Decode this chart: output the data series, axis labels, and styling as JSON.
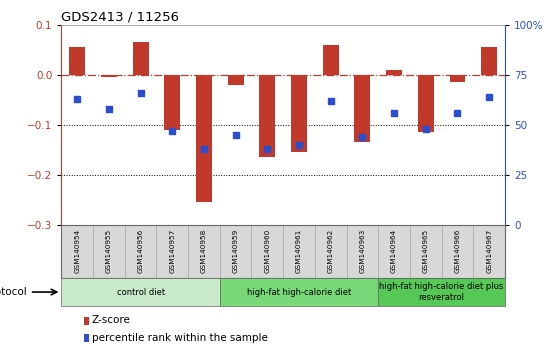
{
  "title": "GDS2413 / 11256",
  "samples": [
    "GSM140954",
    "GSM140955",
    "GSM140956",
    "GSM140957",
    "GSM140958",
    "GSM140959",
    "GSM140960",
    "GSM140961",
    "GSM140962",
    "GSM140963",
    "GSM140964",
    "GSM140965",
    "GSM140966",
    "GSM140967"
  ],
  "z_scores": [
    0.055,
    -0.005,
    0.065,
    -0.11,
    -0.255,
    -0.02,
    -0.165,
    -0.155,
    0.06,
    -0.135,
    0.01,
    -0.115,
    -0.015,
    0.055
  ],
  "percentile_ranks_pct": [
    63,
    58,
    66,
    47,
    38,
    45,
    38,
    40,
    62,
    44,
    56,
    48,
    56,
    64
  ],
  "ylim_left": [
    -0.3,
    0.1
  ],
  "ylim_right": [
    0,
    100
  ],
  "right_ticks": [
    0,
    25,
    50,
    75,
    100
  ],
  "right_tick_labels": [
    "0",
    "25",
    "50",
    "75",
    "100%"
  ],
  "left_ticks": [
    -0.3,
    -0.2,
    -0.1,
    0.0,
    0.1
  ],
  "bar_color": "#c0392b",
  "dot_color": "#2b4fcc",
  "dot_size": 18,
  "bar_width": 0.5,
  "protocol_groups": [
    {
      "label": "control diet",
      "start": 0,
      "end": 4,
      "color": "#c8eac8"
    },
    {
      "label": "high-fat high-calorie diet",
      "start": 5,
      "end": 9,
      "color": "#78d878"
    },
    {
      "label": "high-fat high-calorie diet plus\nresveratrol",
      "start": 10,
      "end": 13,
      "color": "#55c855"
    }
  ],
  "protocol_label": "protocol",
  "legend_items": [
    {
      "label": "Z-score",
      "color": "#c0392b"
    },
    {
      "label": "percentile rank within the sample",
      "color": "#2b4fcc"
    }
  ],
  "sample_box_color": "#d8d8d8",
  "sample_box_edge": "#aaaaaa"
}
